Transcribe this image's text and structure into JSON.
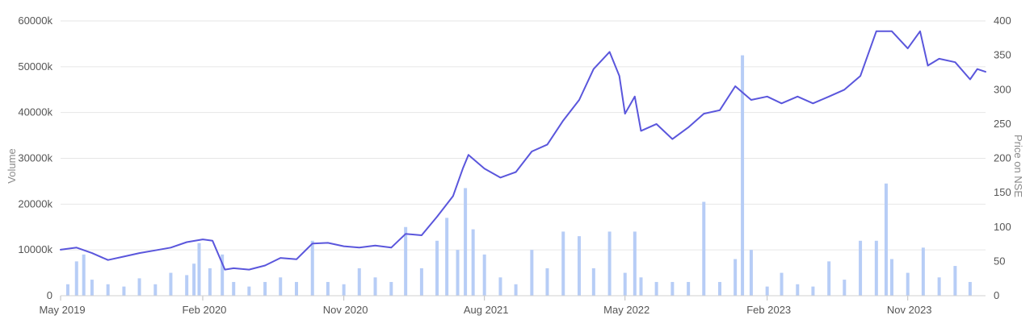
{
  "chart_data": {
    "type": "bar+line",
    "title": "",
    "y_left": {
      "label": "Volume",
      "ticks": [
        "0",
        "10000k",
        "20000k",
        "30000k",
        "40000k",
        "50000k",
        "60000k"
      ],
      "ylim": [
        0,
        60000000
      ]
    },
    "y_right": {
      "label": "Price on NSE",
      "ticks": [
        "0",
        "50",
        "100",
        "150",
        "200",
        "250",
        "300",
        "350",
        "400"
      ],
      "ylim": [
        0,
        400
      ]
    },
    "x_axis": {
      "xlim": [
        "2019-05-01",
        "2024-03-31"
      ],
      "ticks": [
        {
          "label": "May 2019",
          "date": "2019-05-01"
        },
        {
          "label": "Feb 2020",
          "date": "2020-02-01"
        },
        {
          "label": "Nov 2020",
          "date": "2020-11-01"
        },
        {
          "label": "Aug 2021",
          "date": "2021-08-01"
        },
        {
          "label": "May 2022",
          "date": "2022-05-01"
        },
        {
          "label": "Feb 2023",
          "date": "2023-02-01"
        },
        {
          "label": "Nov 2023",
          "date": "2023-11-01"
        }
      ]
    },
    "grid": true,
    "legend": "none",
    "colors": {
      "volume": "#b7cdf6",
      "price": "#5a56dc",
      "grid": "#e6e6e6"
    },
    "series": [
      {
        "type": "line",
        "axis": "right",
        "points": [
          [
            "2019-05-01",
            67
          ],
          [
            "2019-06-01",
            70
          ],
          [
            "2019-07-01",
            62
          ],
          [
            "2019-08-01",
            52
          ],
          [
            "2019-09-01",
            57
          ],
          [
            "2019-10-01",
            62
          ],
          [
            "2019-11-01",
            66
          ],
          [
            "2019-12-01",
            70
          ],
          [
            "2020-01-01",
            78
          ],
          [
            "2020-02-01",
            82
          ],
          [
            "2020-02-20",
            80
          ],
          [
            "2020-03-15",
            38
          ],
          [
            "2020-04-01",
            40
          ],
          [
            "2020-05-01",
            38
          ],
          [
            "2020-06-01",
            44
          ],
          [
            "2020-07-01",
            55
          ],
          [
            "2020-08-01",
            53
          ],
          [
            "2020-09-01",
            76
          ],
          [
            "2020-10-01",
            77
          ],
          [
            "2020-11-01",
            72
          ],
          [
            "2020-12-01",
            70
          ],
          [
            "2021-01-01",
            73
          ],
          [
            "2021-02-01",
            70
          ],
          [
            "2021-03-01",
            90
          ],
          [
            "2021-04-01",
            88
          ],
          [
            "2021-05-01",
            115
          ],
          [
            "2021-06-01",
            145
          ],
          [
            "2021-06-20",
            185
          ],
          [
            "2021-07-01",
            205
          ],
          [
            "2021-08-01",
            185
          ],
          [
            "2021-09-01",
            172
          ],
          [
            "2021-10-01",
            180
          ],
          [
            "2021-11-01",
            210
          ],
          [
            "2021-12-01",
            220
          ],
          [
            "2022-01-01",
            255
          ],
          [
            "2022-02-01",
            285
          ],
          [
            "2022-03-01",
            330
          ],
          [
            "2022-04-01",
            355
          ],
          [
            "2022-04-20",
            320
          ],
          [
            "2022-05-01",
            265
          ],
          [
            "2022-05-20",
            290
          ],
          [
            "2022-06-01",
            240
          ],
          [
            "2022-07-01",
            250
          ],
          [
            "2022-08-01",
            228
          ],
          [
            "2022-09-01",
            245
          ],
          [
            "2022-10-01",
            265
          ],
          [
            "2022-11-01",
            270
          ],
          [
            "2022-12-01",
            305
          ],
          [
            "2023-01-01",
            285
          ],
          [
            "2023-02-01",
            290
          ],
          [
            "2023-03-01",
            280
          ],
          [
            "2023-04-01",
            290
          ],
          [
            "2023-05-01",
            280
          ],
          [
            "2023-06-01",
            290
          ],
          [
            "2023-07-01",
            300
          ],
          [
            "2023-08-01",
            320
          ],
          [
            "2023-09-01",
            385
          ],
          [
            "2023-10-01",
            385
          ],
          [
            "2023-11-01",
            360
          ],
          [
            "2023-11-25",
            385
          ],
          [
            "2023-12-10",
            335
          ],
          [
            "2024-01-01",
            345
          ],
          [
            "2024-02-01",
            340
          ],
          [
            "2024-03-01",
            315
          ],
          [
            "2024-03-15",
            330
          ],
          [
            "2024-03-31",
            326
          ]
        ]
      },
      {
        "type": "bar",
        "axis": "left",
        "points": [
          [
            "2019-05-15",
            2500000
          ],
          [
            "2019-06-01",
            7500000
          ],
          [
            "2019-06-15",
            9000000
          ],
          [
            "2019-07-01",
            3500000
          ],
          [
            "2019-08-01",
            2500000
          ],
          [
            "2019-09-01",
            2000000
          ],
          [
            "2019-10-01",
            3800000
          ],
          [
            "2019-11-01",
            2500000
          ],
          [
            "2019-12-01",
            5000000
          ],
          [
            "2020-01-01",
            4500000
          ],
          [
            "2020-01-15",
            7000000
          ],
          [
            "2020-01-25",
            11500000
          ],
          [
            "2020-02-15",
            6000000
          ],
          [
            "2020-03-10",
            9000000
          ],
          [
            "2020-04-01",
            3000000
          ],
          [
            "2020-05-01",
            2000000
          ],
          [
            "2020-06-01",
            3000000
          ],
          [
            "2020-07-01",
            4000000
          ],
          [
            "2020-08-01",
            3000000
          ],
          [
            "2020-09-01",
            12000000
          ],
          [
            "2020-10-01",
            3000000
          ],
          [
            "2020-11-01",
            2500000
          ],
          [
            "2020-12-01",
            6000000
          ],
          [
            "2021-01-01",
            4000000
          ],
          [
            "2021-02-01",
            3000000
          ],
          [
            "2021-03-01",
            15000000
          ],
          [
            "2021-04-01",
            6000000
          ],
          [
            "2021-05-01",
            12000000
          ],
          [
            "2021-05-20",
            17000000
          ],
          [
            "2021-06-10",
            10000000
          ],
          [
            "2021-06-25",
            23500000
          ],
          [
            "2021-07-10",
            14500000
          ],
          [
            "2021-08-01",
            9000000
          ],
          [
            "2021-09-01",
            4000000
          ],
          [
            "2021-10-01",
            2500000
          ],
          [
            "2021-11-01",
            10000000
          ],
          [
            "2021-12-01",
            6000000
          ],
          [
            "2022-01-01",
            14000000
          ],
          [
            "2022-02-01",
            13000000
          ],
          [
            "2022-03-01",
            6000000
          ],
          [
            "2022-04-01",
            14000000
          ],
          [
            "2022-05-01",
            5000000
          ],
          [
            "2022-05-20",
            14000000
          ],
          [
            "2022-06-01",
            4000000
          ],
          [
            "2022-07-01",
            3000000
          ],
          [
            "2022-08-01",
            3000000
          ],
          [
            "2022-09-01",
            3000000
          ],
          [
            "2022-10-01",
            20500000
          ],
          [
            "2022-11-01",
            3000000
          ],
          [
            "2022-12-01",
            8000000
          ],
          [
            "2022-12-15",
            52500000
          ],
          [
            "2023-01-01",
            10000000
          ],
          [
            "2023-02-01",
            2000000
          ],
          [
            "2023-03-01",
            5000000
          ],
          [
            "2023-04-01",
            2500000
          ],
          [
            "2023-05-01",
            2000000
          ],
          [
            "2023-06-01",
            7500000
          ],
          [
            "2023-07-01",
            3500000
          ],
          [
            "2023-08-01",
            12000000
          ],
          [
            "2023-09-01",
            12000000
          ],
          [
            "2023-09-20",
            24500000
          ],
          [
            "2023-10-01",
            8000000
          ],
          [
            "2023-11-01",
            5000000
          ],
          [
            "2023-12-01",
            10500000
          ],
          [
            "2024-01-01",
            4000000
          ],
          [
            "2024-02-01",
            6500000
          ],
          [
            "2024-03-01",
            3000000
          ]
        ]
      }
    ]
  }
}
